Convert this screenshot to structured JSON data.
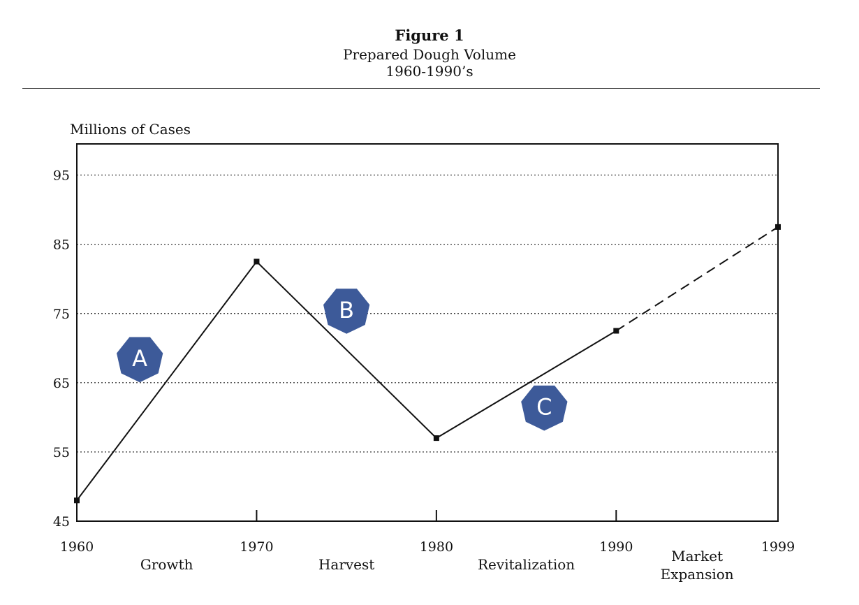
{
  "header": {
    "figure_label": "Figure 1",
    "subtitle_line1": "Prepared Dough Volume",
    "subtitle_line2": "1960-1990’s"
  },
  "chart_data": {
    "type": "line",
    "ylabel": "Millions of Cases",
    "xlabel": "",
    "x": [
      1960,
      1970,
      1980,
      1990,
      1999
    ],
    "x_tick_labels": [
      "1960",
      "1970",
      "1980",
      "1990",
      "1999"
    ],
    "values": [
      48,
      82.5,
      57,
      72.5,
      87.5
    ],
    "projected_from_index": 3,
    "xlim": [
      1960,
      1999
    ],
    "ylim": [
      45,
      99.5
    ],
    "yticks": [
      45,
      55,
      65,
      75,
      85,
      95
    ],
    "y_tick_labels": [
      "45",
      "55",
      "65",
      "75",
      "85",
      "95"
    ],
    "grid": true,
    "phases": [
      {
        "label": "Growth",
        "start": 1960,
        "end": 1970
      },
      {
        "label": "Harvest",
        "start": 1970,
        "end": 1980
      },
      {
        "label": "Revitalization",
        "start": 1980,
        "end": 1990
      },
      {
        "label_line1": "Market",
        "label_line2": "Expansion",
        "start": 1990,
        "end": 1999
      }
    ],
    "annotations": [
      {
        "label": "A",
        "x": 1963.5,
        "y": 68.5
      },
      {
        "label": "B",
        "x": 1975,
        "y": 75.5
      },
      {
        "label": "C",
        "x": 1986,
        "y": 61.5
      }
    ],
    "colors": {
      "line": "#111111",
      "badge": "#3d5a99"
    }
  }
}
